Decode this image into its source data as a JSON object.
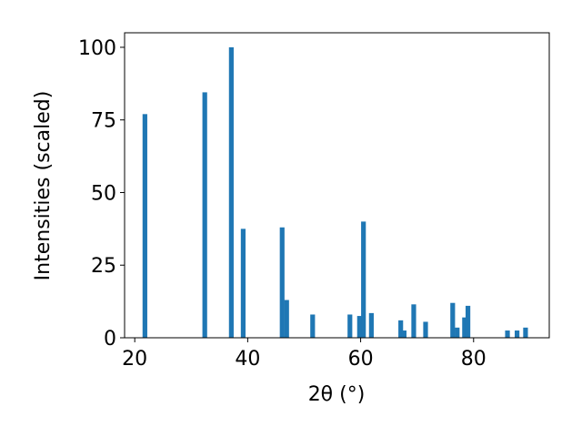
{
  "chart_data": {
    "type": "bar",
    "xlabel": "2θ (°)",
    "ylabel": "Intensities (scaled)",
    "x": [
      21.8,
      32.4,
      37.1,
      39.2,
      46.1,
      46.9,
      51.5,
      58.1,
      59.8,
      60.5,
      61.9,
      67.1,
      67.7,
      69.4,
      71.5,
      76.3,
      77.1,
      78.4,
      79.0,
      86.0,
      87.7,
      89.2
    ],
    "values": [
      77,
      84.5,
      100,
      37.5,
      38,
      13,
      8,
      8,
      7.5,
      40,
      8.5,
      6,
      2.5,
      11.5,
      5.5,
      12,
      3.5,
      7,
      11,
      2.5,
      2.5,
      3.5
    ],
    "color": "#1f77b4",
    "xlim": [
      18.2,
      93.4
    ],
    "xticks": [
      20,
      40,
      60,
      80
    ],
    "ylim": [
      0,
      105
    ],
    "yticks": [
      0,
      25,
      50,
      75,
      100
    ]
  }
}
